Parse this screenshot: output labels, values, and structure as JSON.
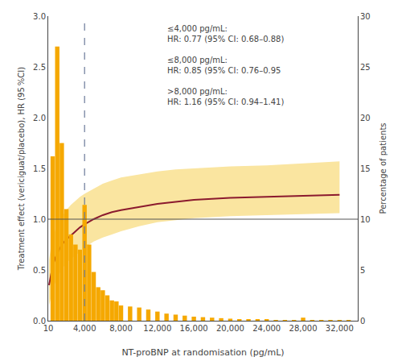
{
  "chart_data": {
    "type": "bar_line",
    "xlabel": "NT-proBNP at randomisation (pg/mL)",
    "ylabel": "Treatment effect (vericiguat/placebo), HR (95 %CI)",
    "y2label": "Percentage of patients",
    "xlim": [
      10,
      34000
    ],
    "ylim": [
      0.0,
      3.0
    ],
    "y2lim": [
      0,
      30
    ],
    "xticks": [
      10,
      {
        "value": 4000,
        "label": "4,000"
      },
      {
        "value": 8000,
        "label": "8,000"
      },
      {
        "value": 12000,
        "label": "12,000"
      },
      {
        "value": 16000,
        "label": "16,000"
      },
      {
        "value": 20000,
        "label": "20,000"
      },
      {
        "value": 24000,
        "label": "24,000"
      },
      {
        "value": 28000,
        "label": "28,000"
      },
      {
        "value": 32000,
        "label": "32,000"
      }
    ],
    "yticks": [
      {
        "value": 0,
        "label": "0.0"
      },
      0.5,
      {
        "value": 1,
        "label": "1.0"
      },
      1.5,
      {
        "value": 2,
        "label": "2.0"
      },
      2.5,
      {
        "value": 3,
        "label": "3.0"
      }
    ],
    "y2ticks": [
      0,
      5,
      10,
      15,
      20,
      25,
      30
    ],
    "grid": false,
    "series": [
      {
        "type": "bar",
        "axis": "y2",
        "color": "#F5A800",
        "x": [
          500,
          1000,
          1500,
          2000,
          2500,
          3000,
          3500,
          4000,
          4500,
          5000,
          5500,
          6000,
          6500,
          7000,
          7500,
          8000,
          9000,
          10000,
          11000,
          12000,
          13000,
          14000,
          15000,
          16000,
          17000,
          18000,
          19000,
          20000,
          21000,
          22000,
          23000,
          24000,
          25000,
          26000,
          27000,
          28000,
          29000,
          30000,
          31000,
          32000,
          33000
        ],
        "values": [
          16.2,
          27.0,
          17.5,
          11.0,
          8.5,
          7.5,
          7.0,
          11.4,
          7.5,
          4.8,
          3.3,
          3.0,
          2.5,
          2.0,
          1.9,
          1.5,
          1.4,
          1.3,
          1.1,
          0.9,
          0.7,
          0.6,
          0.5,
          0.4,
          0.35,
          0.3,
          0.25,
          0.2,
          0.15,
          0.12,
          0.1,
          0.08,
          0.07,
          0.06,
          0.05,
          0.3,
          0.04,
          0.03,
          0.03,
          0.02,
          0.02
        ]
      },
      {
        "type": "band",
        "color": "#FAE5A0",
        "x": [
          100,
          300,
          500,
          800,
          1200,
          1600,
          2000,
          2500,
          3000,
          3500,
          4000,
          5000,
          6000,
          7000,
          8000,
          10000,
          12000,
          14000,
          16000,
          18000,
          20000,
          24000,
          28000,
          32000
        ],
        "upper": [
          0.6,
          0.72,
          0.8,
          0.9,
          0.98,
          1.04,
          1.09,
          1.14,
          1.18,
          1.22,
          1.25,
          1.3,
          1.35,
          1.38,
          1.41,
          1.44,
          1.47,
          1.49,
          1.5,
          1.51,
          1.52,
          1.53,
          1.55,
          1.57
        ],
        "lower": [
          0.15,
          0.24,
          0.3,
          0.38,
          0.46,
          0.52,
          0.57,
          0.61,
          0.64,
          0.68,
          0.72,
          0.78,
          0.82,
          0.85,
          0.88,
          0.93,
          0.97,
          0.99,
          1.01,
          1.02,
          1.03,
          1.04,
          1.05,
          1.06
        ]
      },
      {
        "type": "line",
        "color": "#8B1A2E",
        "x": [
          100,
          300,
          500,
          800,
          1200,
          1600,
          2000,
          2500,
          3000,
          3500,
          4000,
          5000,
          6000,
          7000,
          8000,
          10000,
          12000,
          14000,
          16000,
          18000,
          20000,
          24000,
          28000,
          32000
        ],
        "values": [
          0.35,
          0.46,
          0.54,
          0.62,
          0.7,
          0.76,
          0.8,
          0.84,
          0.88,
          0.92,
          0.95,
          1.0,
          1.04,
          1.07,
          1.09,
          1.12,
          1.15,
          1.17,
          1.19,
          1.2,
          1.21,
          1.22,
          1.23,
          1.24
        ]
      }
    ],
    "hlines": [
      {
        "value": 1.0,
        "color": "#555555"
      }
    ],
    "vlines": [
      {
        "value": 4000,
        "color": "#6b7a99",
        "line_style": "dashed"
      }
    ],
    "annotation": "≤4,000 pg/mL:\nHR: 0.77 (95% CI: 0.68–0.88)\n\n≤8,000 pg/mL:\nHR: 0.85 (95% CI: 0.76–0.95\n\n>8,000 pg/mL:\nHR: 1.16 (95% CI: 0.94–1.41)"
  }
}
